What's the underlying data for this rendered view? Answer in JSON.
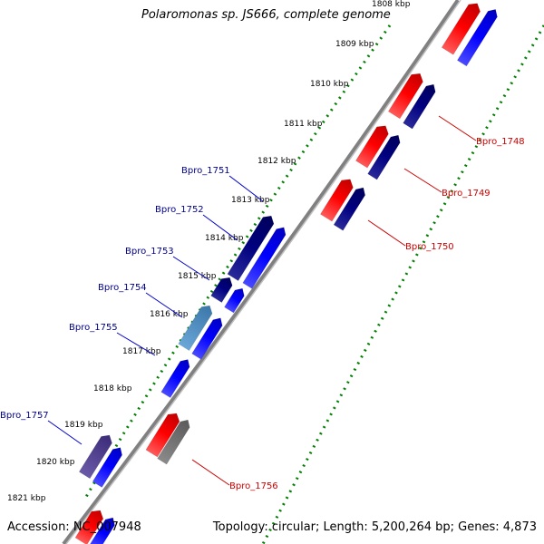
{
  "title": "Polaromonas sp. JS666, complete genome",
  "accession": "Accession: NC_007948",
  "summary": "Topology: circular; Length: 5,200,264 bp; Genes: 4,873",
  "ticks": [
    {
      "label": "1808 kbp"
    },
    {
      "label": "1809 kbp"
    },
    {
      "label": "1810 kbp"
    },
    {
      "label": "1811 kbp"
    },
    {
      "label": "1812 kbp"
    },
    {
      "label": "1813 kbp"
    },
    {
      "label": "1814 kbp"
    },
    {
      "label": "1815 kbp"
    },
    {
      "label": "1816 kbp"
    },
    {
      "label": "1817 kbp"
    },
    {
      "label": "1818 kbp"
    },
    {
      "label": "1819 kbp"
    },
    {
      "label": "1820 kbp"
    },
    {
      "label": "1821 kbp"
    }
  ],
  "genes": [
    {
      "name": "Bpro_1748",
      "color": "#cc0000"
    },
    {
      "name": "Bpro_1749",
      "color": "#cc0000"
    },
    {
      "name": "Bpro_1750",
      "color": "#cc0000"
    },
    {
      "name": "Bpro_1751",
      "color": "#00008b"
    },
    {
      "name": "Bpro_1752",
      "color": "#00008b"
    },
    {
      "name": "Bpro_1753",
      "color": "#00008b"
    },
    {
      "name": "Bpro_1754",
      "color": "#00008b"
    },
    {
      "name": "Bpro_1755",
      "color": "#00008b"
    },
    {
      "name": "Bpro_1756",
      "color": "#cc0000"
    },
    {
      "name": "Bpro_1757",
      "color": "#00008b"
    }
  ],
  "colors": {
    "forward_strand": "#ff0000",
    "forward_cds": "#ff0000",
    "reverse_strand": "#0000ff",
    "reverse_cds": "#000080",
    "backbone": "#808080",
    "tick_marks": "#008000",
    "label_line_forward": "#cc0000",
    "label_line_reverse": "#0000cc"
  }
}
